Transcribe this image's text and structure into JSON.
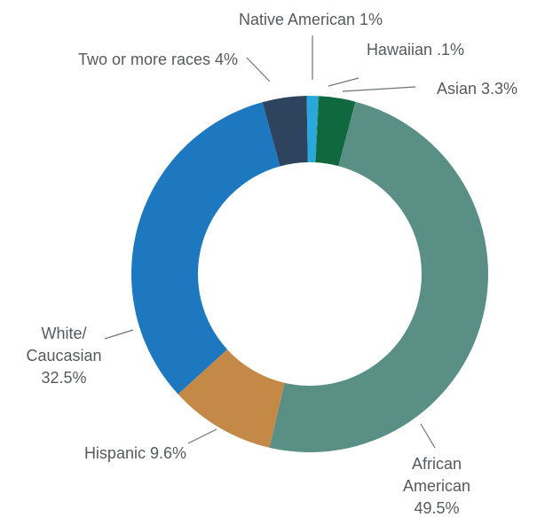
{
  "chart_data": {
    "type": "donut",
    "title": "",
    "slices": [
      {
        "name": "Native American",
        "label_lines": [
          "Native American 1%"
        ],
        "value": 1.0,
        "color": "#29a8e0"
      },
      {
        "name": "Hawaiian",
        "label_lines": [
          "Hawaiian .1%"
        ],
        "value": 0.1,
        "color": "#1e9a8c"
      },
      {
        "name": "Asian",
        "label_lines": [
          "Asian 3.3%"
        ],
        "value": 3.3,
        "color": "#10683e"
      },
      {
        "name": "African American",
        "label_lines": [
          "African",
          "American",
          "49.5%"
        ],
        "value": 49.5,
        "color": "#5a8f85"
      },
      {
        "name": "Hispanic",
        "label_lines": [
          "Hispanic 9.6%"
        ],
        "value": 9.6,
        "color": "#c48847"
      },
      {
        "name": "White/Caucasian",
        "label_lines": [
          "White/",
          "Caucasian",
          "32.5%"
        ],
        "value": 32.5,
        "color": "#1d78c0"
      },
      {
        "name": "Two or more races",
        "label_lines": [
          "Two or more races 4%"
        ],
        "value": 4.0,
        "color": "#2e445e"
      }
    ],
    "legend": "none",
    "data_labels": "outside with leader lines"
  }
}
